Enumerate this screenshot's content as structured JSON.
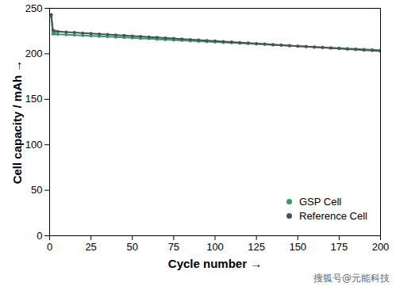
{
  "chart_data": {
    "type": "line",
    "xlabel": "Cycle number",
    "ylabel": "Cell capacity / mAh",
    "x": [
      1,
      2,
      3,
      5,
      10,
      15,
      20,
      25,
      30,
      35,
      40,
      45,
      50,
      55,
      60,
      65,
      70,
      75,
      80,
      85,
      90,
      95,
      100,
      105,
      110,
      115,
      120,
      125,
      130,
      135,
      140,
      145,
      150,
      155,
      160,
      165,
      170,
      175,
      180,
      185,
      190,
      195,
      200
    ],
    "series": [
      {
        "name": "GSP Cell",
        "color": "#2e9e68",
        "marker": "circle",
        "values": [
          241,
          222,
          222,
          221.5,
          221.1,
          220.6,
          220.2,
          219.7,
          219.3,
          218.8,
          218.4,
          217.9,
          217.5,
          217.0,
          216.6,
          216.1,
          215.7,
          215.2,
          214.8,
          214.3,
          213.9,
          213.4,
          213.0,
          212.5,
          212.1,
          211.6,
          211.2,
          210.7,
          210.3,
          209.8,
          209.4,
          208.9,
          208.5,
          208.0,
          207.6,
          207.1,
          206.7,
          206.2,
          205.8,
          205.3,
          204.9,
          204.4,
          204.0
        ]
      },
      {
        "name": "Reference Cell",
        "color": "#505050",
        "marker": "circle",
        "values": [
          243,
          226,
          225,
          224.5,
          223.9,
          223.4,
          222.8,
          222.3,
          221.7,
          221.2,
          220.6,
          220.1,
          219.5,
          219.0,
          218.4,
          217.9,
          217.3,
          216.8,
          216.2,
          215.7,
          215.1,
          214.6,
          214.0,
          213.5,
          212.9,
          212.4,
          211.8,
          211.3,
          210.7,
          210.2,
          209.6,
          209.1,
          208.5,
          208.0,
          207.4,
          206.9,
          206.3,
          205.8,
          205.2,
          204.7,
          204.1,
          203.6,
          203.0
        ]
      }
    ],
    "xlim": [
      0,
      200
    ],
    "xticks": [
      0,
      25,
      50,
      75,
      100,
      125,
      150,
      175,
      200
    ],
    "ylim": [
      0,
      250
    ],
    "yticks": [
      0,
      50,
      100,
      150,
      200,
      250
    ],
    "legend": "bottom-right",
    "annotations": [
      "搜狐号@元能科技"
    ]
  }
}
